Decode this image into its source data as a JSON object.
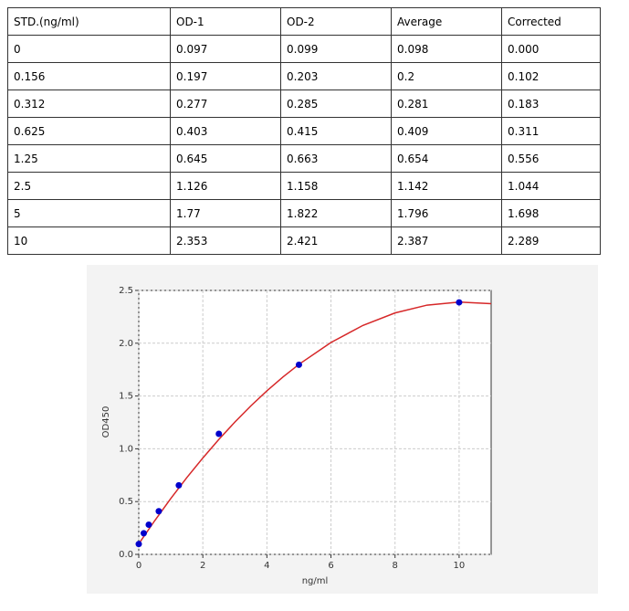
{
  "table": {
    "header": [
      "STD.(ng/ml)",
      "OD-1",
      "OD-2",
      "Average",
      "Corrected"
    ],
    "rows": [
      [
        "0",
        "0.097",
        "0.099",
        "0.098",
        "0.000"
      ],
      [
        "0.156",
        "0.197",
        "0.203",
        "0.2",
        "0.102"
      ],
      [
        "0.312",
        "0.277",
        "0.285",
        "0.281",
        "0.183"
      ],
      [
        "0.625",
        "0.403",
        "0.415",
        "0.409",
        "0.311"
      ],
      [
        "1.25",
        "0.645",
        "0.663",
        "0.654",
        "0.556"
      ],
      [
        "2.5",
        "1.126",
        "1.158",
        "1.142",
        "1.044"
      ],
      [
        "5",
        "1.77",
        "1.822",
        "1.796",
        "1.698"
      ],
      [
        "10",
        "2.353",
        "2.421",
        "2.387",
        "2.289"
      ]
    ]
  },
  "chart_data": {
    "type": "scatter",
    "x_label": "ng/ml",
    "y_label": "OD450",
    "x": [
      0,
      0.156,
      0.312,
      0.625,
      1.25,
      2.5,
      5,
      10
    ],
    "series": [
      {
        "color": "#0000cc",
        "values": [
          0.098,
          0.2,
          0.281,
          0.409,
          0.654,
          1.142,
          1.796,
          2.387
        ]
      }
    ],
    "curve": {
      "color": "#d62728",
      "x": [
        0,
        0.5,
        1,
        1.5,
        2,
        2.5,
        3,
        3.5,
        4,
        4.5,
        5,
        6,
        7,
        8,
        9,
        10,
        11
      ],
      "values": [
        0.1,
        0.32,
        0.529,
        0.727,
        0.913,
        1.089,
        1.253,
        1.407,
        1.549,
        1.68,
        1.8,
        2.007,
        2.169,
        2.287,
        2.361,
        2.39,
        2.375
      ]
    },
    "xlim": [
      0,
      11
    ],
    "ylim": [
      0,
      2.5
    ],
    "xticks": [
      0,
      2,
      4,
      6,
      8,
      10
    ],
    "yticks": [
      {
        "value": 0,
        "label": "0.0"
      },
      0.5,
      {
        "value": 1,
        "label": "1.0"
      },
      1.5,
      {
        "value": 2,
        "label": "2.0"
      },
      2.5
    ],
    "grid": true
  }
}
